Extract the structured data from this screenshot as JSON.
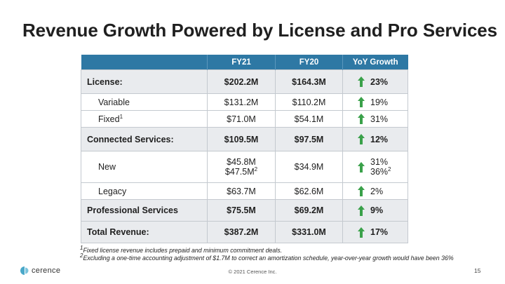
{
  "slide": {
    "title": "Revenue Growth Powered by License and Pro Services",
    "page_number": "15",
    "copyright": "© 2021 Cerence Inc.",
    "logo_text": "cerence"
  },
  "table": {
    "headers": [
      "",
      "FY21",
      "FY20",
      "YoY Growth"
    ],
    "rows": [
      {
        "label": "License:",
        "fy21": "$202.2M",
        "fy20": "$164.3M",
        "growth": "23%"
      },
      {
        "label": "Variable",
        "fy21": "$131.2M",
        "fy20": "$110.2M",
        "growth": "19%"
      },
      {
        "label": "Fixed",
        "label_sup": "1",
        "fy21": "$71.0M",
        "fy20": "$54.1M",
        "growth": "31%"
      },
      {
        "label": "Connected Services:",
        "fy21": "$109.5M",
        "fy20": "$97.5M",
        "growth": "12%"
      },
      {
        "label": "New",
        "fy21": "$45.8M",
        "fy21_adj": "$47.5M",
        "fy21_adj_sup": "2",
        "fy20": "$34.9M",
        "growth": "31%",
        "growth_adj": "36%",
        "growth_adj_sup": "2"
      },
      {
        "label": "Legacy",
        "fy21": "$63.7M",
        "fy20": "$62.6M",
        "growth": "2%"
      },
      {
        "label": "Professional Services",
        "fy21": "$75.5M",
        "fy20": "$69.2M",
        "growth": "9%"
      },
      {
        "label": "Total Revenue:",
        "fy21": "$387.2M",
        "fy20": "$331.0M",
        "growth": "17%"
      }
    ]
  },
  "footnotes": {
    "note1_mark": "1",
    "note1": "Fixed license revenue includes prepaid and minimum commitment deals.",
    "note2_mark": "2",
    "note2": "Excluding a one-time accounting adjustment of $1.7M to correct an amortization schedule, year-over-year growth would have been 36%"
  },
  "colors": {
    "header_bg": "#2e78a4",
    "major_row_bg": "#e9ebee",
    "arrow_green": "#3aa14a",
    "pro_services_text": "#1d4f9c"
  },
  "icons": {
    "growth_arrow": "arrow-up-icon",
    "logo": "cerence-logo-icon"
  }
}
